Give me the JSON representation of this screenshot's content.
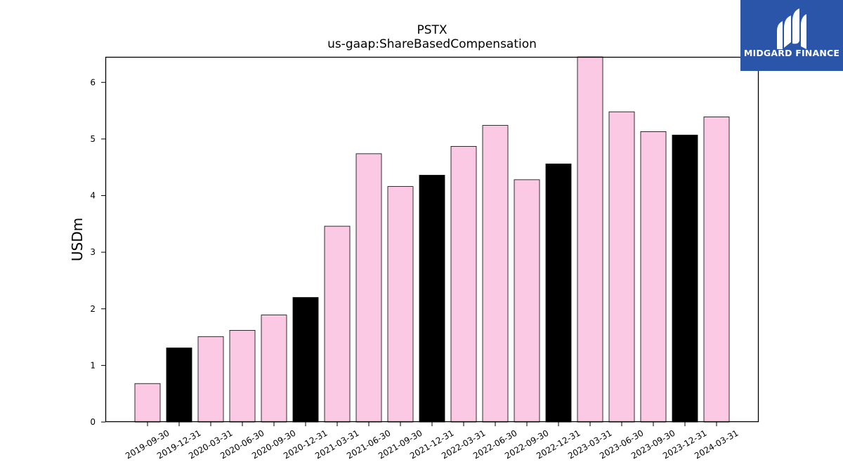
{
  "chart_data": {
    "type": "bar",
    "title": "PSTX",
    "subtitle": "us-gaap:ShareBasedCompensation",
    "xlabel": "",
    "ylabel": "USDm",
    "ylim": [
      0,
      6.45
    ],
    "yticks": [
      0,
      1,
      2,
      3,
      4,
      5,
      6
    ],
    "grid": false,
    "categories": [
      "2019-09-30",
      "2019-12-31",
      "2020-03-31",
      "2020-06-30",
      "2020-09-30",
      "2020-12-31",
      "2021-03-31",
      "2021-06-30",
      "2021-09-30",
      "2021-12-31",
      "2022-03-31",
      "2022-06-30",
      "2022-09-30",
      "2022-12-31",
      "2023-03-31",
      "2023-06-30",
      "2023-09-30",
      "2023-12-31",
      "2024-03-31"
    ],
    "values": [
      0.68,
      1.31,
      1.51,
      1.62,
      1.89,
      2.2,
      3.46,
      4.74,
      4.16,
      4.36,
      4.87,
      5.24,
      4.28,
      4.56,
      6.45,
      5.48,
      5.13,
      5.07,
      5.39
    ],
    "bar_colors": [
      "#fcc9e4",
      "#000000",
      "#fcc9e4",
      "#fcc9e4",
      "#fcc9e4",
      "#000000",
      "#fcc9e4",
      "#fcc9e4",
      "#fcc9e4",
      "#000000",
      "#fcc9e4",
      "#fcc9e4",
      "#fcc9e4",
      "#000000",
      "#fcc9e4",
      "#fcc9e4",
      "#fcc9e4",
      "#000000",
      "#fcc9e4"
    ]
  },
  "logo": {
    "text": "MIDGARD FINANCE",
    "icon": "midgard-logo-icon",
    "background": "#2a55a8"
  }
}
